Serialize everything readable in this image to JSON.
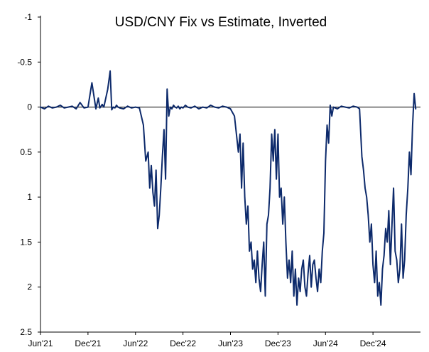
{
  "chart_data": {
    "type": "line",
    "title": "USD/CNY Fix vs Estimate, Inverted",
    "xlabel": "",
    "ylabel": "",
    "y_inverted": true,
    "ylim": [
      -1,
      2.5
    ],
    "y_ticks": [
      -1,
      -0.5,
      0,
      0.5,
      1,
      1.5,
      2,
      2.5
    ],
    "y_tick_labels": [
      "-1",
      "-0.5",
      "0",
      "0.5",
      "1",
      "1.5",
      "2",
      "2.5"
    ],
    "x_ticks": [
      0,
      6,
      12,
      18,
      24,
      30,
      36,
      42
    ],
    "x_tick_labels": [
      "Jun'21",
      "Dec'21",
      "Jun'22",
      "Dec'22",
      "Jun'23",
      "Dec'23",
      "Jun'24",
      "Dec'24"
    ],
    "xlim": [
      0,
      48
    ],
    "x_unit": "months since Jun 2021",
    "grid": false,
    "series": [
      {
        "name": "USD/CNY Fix vs Estimate",
        "color": "#0d2a6b",
        "x": [
          0,
          0.5,
          1,
          1.5,
          2,
          2.5,
          3,
          3.5,
          4,
          4.5,
          5,
          5.5,
          6,
          6.5,
          7,
          7.3,
          7.5,
          7.8,
          8,
          8.5,
          8.8,
          9,
          9.2,
          9.4,
          9.6,
          9.8,
          10,
          10.5,
          11,
          11.5,
          12,
          12.5,
          13,
          13.3,
          13.6,
          13.8,
          14,
          14.2,
          14.4,
          14.6,
          14.8,
          15,
          15.2,
          15.4,
          15.6,
          15.8,
          16,
          16.2,
          16.4,
          16.6,
          16.8,
          17,
          17.2,
          17.4,
          17.6,
          17.8,
          18,
          18.3,
          18.6,
          19,
          19.5,
          20,
          20.5,
          21,
          21.5,
          22,
          22.5,
          23,
          23.5,
          24,
          24.5,
          25,
          25.2,
          25.4,
          25.6,
          25.8,
          26,
          26.2,
          26.4,
          26.6,
          26.8,
          27,
          27.2,
          27.4,
          27.6,
          27.8,
          28,
          28.2,
          28.4,
          28.6,
          28.8,
          29,
          29.2,
          29.4,
          29.6,
          29.8,
          30,
          30.2,
          30.4,
          30.6,
          30.8,
          31,
          31.2,
          31.4,
          31.6,
          31.8,
          32,
          32.2,
          32.4,
          32.6,
          32.8,
          33,
          33.2,
          33.4,
          33.6,
          33.8,
          34,
          34.2,
          34.4,
          34.6,
          34.8,
          35,
          35.2,
          35.4,
          35.6,
          35.8,
          36,
          36.2,
          36.4,
          36.6,
          36.8,
          37,
          37.5,
          38,
          38.5,
          39,
          39.5,
          40,
          40.3,
          40.6,
          40.8,
          41,
          41.2,
          41.4,
          41.6,
          41.8,
          42,
          42.2,
          42.4,
          42.6,
          42.8,
          43,
          43.2,
          43.4,
          43.6,
          43.8,
          44,
          44.2,
          44.4,
          44.6,
          44.8,
          45,
          45.2,
          45.4,
          45.6,
          45.8,
          46,
          46.2,
          46.4,
          46.6,
          46.8,
          47,
          47.2,
          47.4
        ],
        "values": [
          0,
          0.02,
          -0.01,
          0.01,
          0,
          -0.02,
          0.01,
          0,
          -0.01,
          0.02,
          -0.05,
          0.01,
          0,
          -0.27,
          0.02,
          -0.1,
          0.01,
          -0.03,
          0,
          -0.2,
          -0.4,
          0.03,
          0,
          0.01,
          -0.02,
          0,
          0.01,
          0.02,
          -0.01,
          0.01,
          0,
          0.01,
          0.2,
          0.6,
          0.5,
          0.9,
          0.65,
          0.95,
          1.1,
          0.7,
          1.35,
          1.2,
          0.9,
          0.55,
          0.25,
          0.8,
          -0.2,
          0.1,
          0,
          0.02,
          -0.02,
          0,
          0.01,
          -0.01,
          0.02,
          0,
          0.01,
          -0.02,
          0,
          0.01,
          -0.01,
          0.02,
          0,
          0.01,
          -0.02,
          0,
          0.01,
          -0.01,
          0,
          0.02,
          0.1,
          0.5,
          0.3,
          0.9,
          0.4,
          1.0,
          1.3,
          1.1,
          1.6,
          1.5,
          1.8,
          1.7,
          1.95,
          1.6,
          1.9,
          2.05,
          1.75,
          1.5,
          2.1,
          1.3,
          1.2,
          0.9,
          0.3,
          0.6,
          0.25,
          0.8,
          0.3,
          1.0,
          0.9,
          1.3,
          1.0,
          1.5,
          1.9,
          1.7,
          1.95,
          1.6,
          2.1,
          1.8,
          2.2,
          1.9,
          2.05,
          1.8,
          1.7,
          2.0,
          2.1,
          1.85,
          1.65,
          2.0,
          1.75,
          1.7,
          1.9,
          2.05,
          1.8,
          1.95,
          1.6,
          1.4,
          0.6,
          0.2,
          0.4,
          -0.02,
          0.1,
          0,
          0.02,
          -0.01,
          0,
          0.01,
          -0.01,
          0,
          0.02,
          0.55,
          0.7,
          0.9,
          1.0,
          1.2,
          1.5,
          1.3,
          1.75,
          1.95,
          1.6,
          2.1,
          1.95,
          2.2,
          1.8,
          1.65,
          1.35,
          1.5,
          1.15,
          1.75,
          1.3,
          0.9,
          1.6,
          1.7,
          1.95,
          1.8,
          1.3,
          1.9,
          1.7,
          1.2,
          0.9,
          0.5,
          0.75,
          0.2,
          -0.15,
          0.02
        ]
      }
    ]
  }
}
